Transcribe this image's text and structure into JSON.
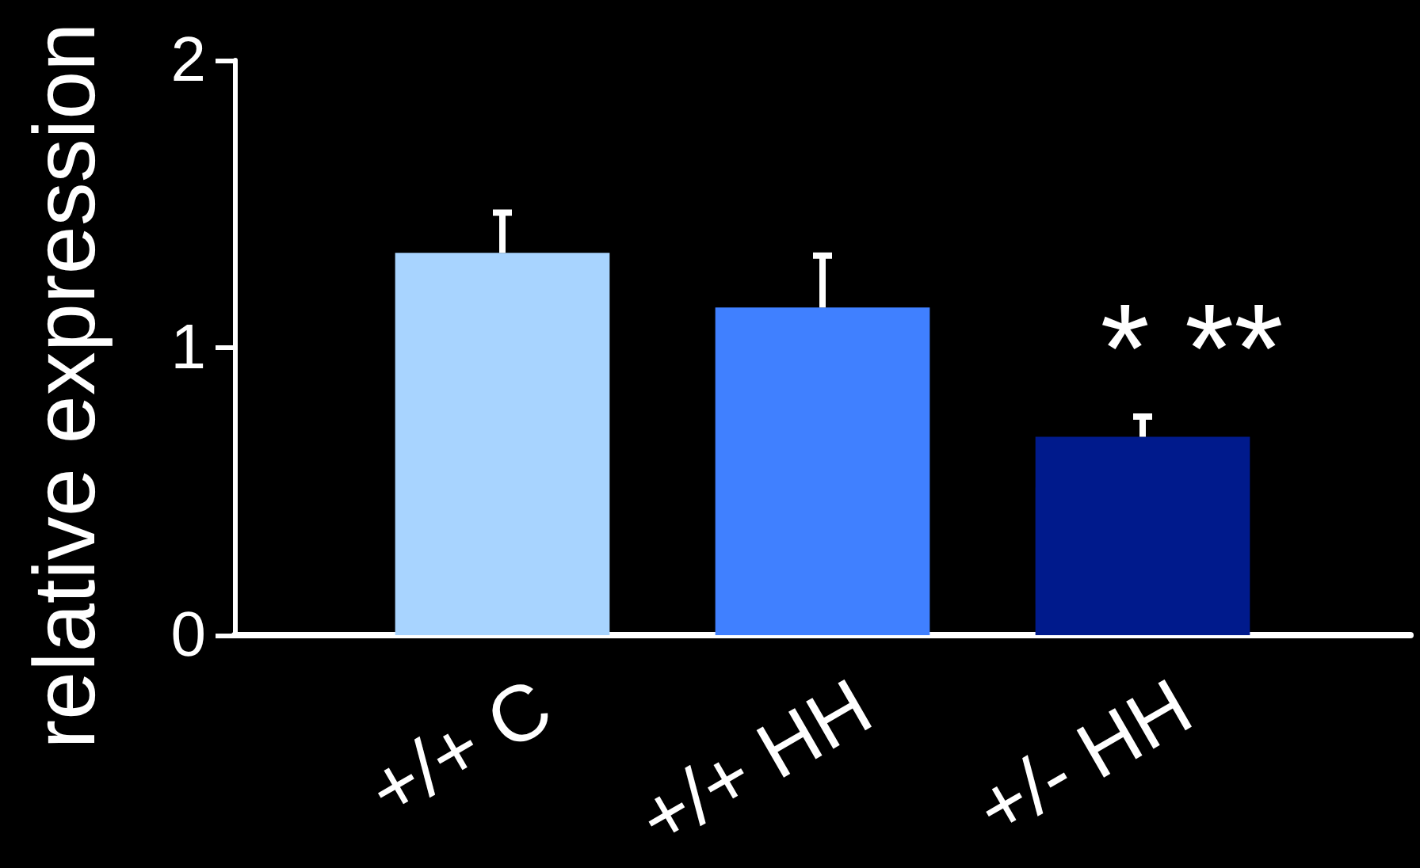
{
  "chart_data": {
    "type": "bar",
    "ylabel": "relative expression",
    "categories": [
      "+/+ C",
      "+/+ HH",
      "+/- HH"
    ],
    "values": [
      1.33,
      1.14,
      0.69
    ],
    "colors": [
      "#a8d4ff",
      "#4080ff",
      "#001a8c"
    ],
    "errors": [
      [
        1.33,
        1.47
      ],
      [
        1.14,
        1.32
      ],
      [
        0.69,
        0.76
      ]
    ],
    "ylim": [
      0,
      2
    ],
    "yticks": [
      0,
      1,
      2
    ],
    "annotations": [
      "* **"
    ]
  }
}
